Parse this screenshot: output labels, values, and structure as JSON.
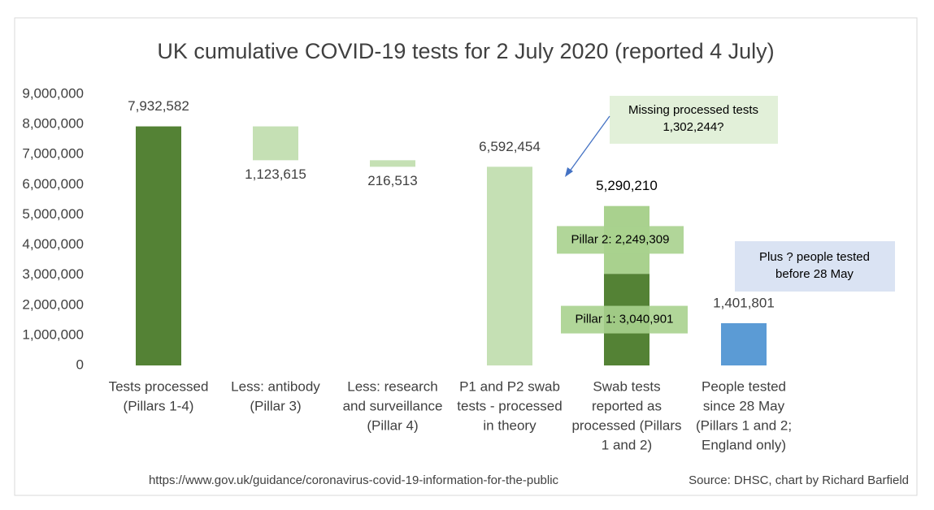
{
  "chart_data": {
    "type": "waterfall",
    "title": "UK cumulative COVID-19 tests for 2 July 2020 (reported 4 July)",
    "categories": [
      [
        "Tests processed",
        "(Pillars 1-4)"
      ],
      [
        "Less: antibody",
        "(Pillar 3)"
      ],
      [
        "Less: research",
        "and surveillance",
        "(Pillar 4)"
      ],
      [
        "P1 and P2 swab",
        "tests - processed",
        "in theory"
      ],
      [
        "Swab tests",
        "reported as",
        "processed (Pillars",
        "1 and 2)"
      ],
      [
        "People tested",
        "since 28 May",
        "(Pillars 1 and 2;",
        "England only)"
      ]
    ],
    "bars": [
      {
        "mode": "total",
        "value": 7932582,
        "value_label": "7,932,582",
        "color": "#548235",
        "label_position": "above"
      },
      {
        "mode": "decrease",
        "value": 1123615,
        "value_label": "1,123,615",
        "color": "#c5e0b4",
        "label_position": "below"
      },
      {
        "mode": "decrease",
        "value": 216513,
        "value_label": "216,513",
        "color": "#c5e0b4",
        "label_position": "below"
      },
      {
        "mode": "total",
        "value": 6592454,
        "value_label": "6,592,454",
        "color": "#c5e0b4",
        "label_position": "above"
      },
      {
        "mode": "stack",
        "segments": [
          {
            "value": 3040901,
            "label": "Pillar 1:  3,040,901",
            "color": "#548235"
          },
          {
            "value": 2249309,
            "label": "Pillar 2:  2,249,309",
            "color": "#a9d18e"
          }
        ],
        "total": 5290210,
        "total_label": "5,290,210",
        "label_position": "above"
      },
      {
        "mode": "total",
        "value": 1401801,
        "value_label": "1,401,801",
        "color": "#5b9bd5",
        "label_position": "above"
      }
    ],
    "ylim": [
      0,
      9000000
    ],
    "yticks": [
      0,
      {
        "value": 1000000,
        "label": "1,000,000"
      },
      {
        "value": 2000000,
        "label": "2,000,000"
      },
      {
        "value": 3000000,
        "label": "3,000,000"
      },
      {
        "value": 4000000,
        "label": "4,000,000"
      },
      {
        "value": 5000000,
        "label": "5,000,000"
      },
      {
        "value": 6000000,
        "label": "6,000,000"
      },
      {
        "value": 7000000,
        "label": "7,000,000"
      },
      {
        "value": 8000000,
        "label": "8,000,000"
      },
      {
        "value": 9000000,
        "label": "9,000,000"
      }
    ],
    "grid": false,
    "annotations": [
      [
        "Missing processed tests",
        "1,302,244?"
      ],
      [
        "Plus ? people tested",
        "before 28 May"
      ]
    ],
    "footer_url": "https://www.gov.uk/guidance/coronavirus-covid-19-information-for-the-public",
    "source": "Source: DHSC, chart by Richard Barfield"
  }
}
